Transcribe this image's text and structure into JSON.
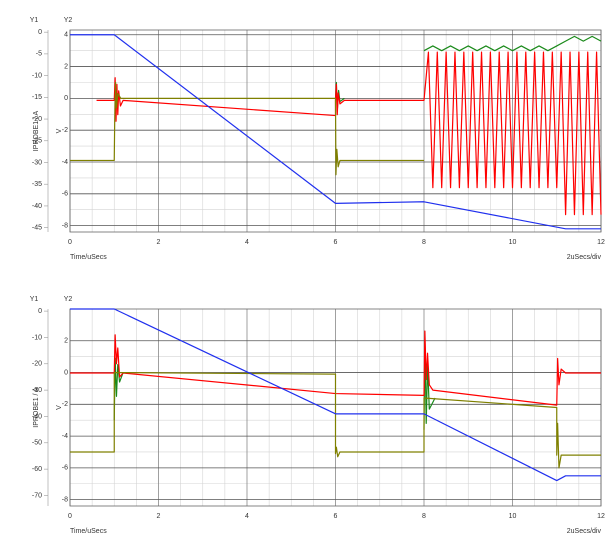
{
  "chart_data": [
    {
      "type": "line",
      "y1_title": "Y1",
      "y2_title": "Y2",
      "ylabel": "IPROBE1 / A",
      "y2label": "V",
      "x_label": "Time/uSecs",
      "x_scale_label": "2uSecs/div",
      "grid": true,
      "xlim": [
        0,
        12
      ],
      "xticks": [
        0,
        2,
        4,
        6,
        8,
        10,
        12
      ],
      "ylim": [
        -46,
        0.5
      ],
      "yticks": [
        0,
        -5,
        -10,
        -15,
        -20,
        -25,
        -30,
        -35,
        -40,
        -45
      ],
      "y2lim": [
        -8.4,
        4.3
      ],
      "y2ticks": [
        4,
        2,
        0,
        -2,
        -4,
        -6,
        -8
      ],
      "series": [
        {
          "color": "#1a8a1a",
          "axis": "y2",
          "x": [
            6,
            6.02,
            6.04,
            6.07,
            6.1,
            6.2,
            6.2,
            8,
            8.2,
            8.4,
            8.6,
            8.8,
            9,
            9.2,
            9.4,
            9.6,
            9.8,
            10,
            10.2,
            10.4,
            10.6,
            10.8,
            11,
            11.2,
            11.4,
            11.6,
            11.8,
            12
          ],
          "values": [
            0,
            1.0,
            -0.8,
            0.5,
            -0.2,
            0,
            null,
            3.0,
            3.3,
            3.0,
            3.3,
            3.0,
            3.3,
            3.0,
            3.3,
            3.0,
            3.3,
            3.0,
            3.3,
            3.0,
            3.3,
            3.0,
            3.3,
            3.6,
            3.9,
            3.6,
            3.9,
            3.6
          ]
        },
        {
          "color": "#ff0000",
          "x": [
            0.6,
            1,
            1.02,
            1.04,
            1.06,
            1.08,
            1.1,
            1.14,
            1.2,
            6,
            6,
            6.02,
            6.04,
            6.06,
            6.1,
            6.2,
            8,
            8.1,
            8.2,
            8.3,
            8.4,
            8.5,
            8.6,
            8.7,
            8.8,
            8.9,
            9,
            9.1,
            9.2,
            9.3,
            9.4,
            9.5,
            9.6,
            9.7,
            9.8,
            9.9,
            10,
            10.1,
            10.2,
            10.3,
            10.4,
            10.5,
            10.6,
            10.7,
            10.8,
            10.9,
            11,
            11.1,
            11.2,
            11.3,
            11.4,
            11.5,
            11.6,
            11.7,
            11.8,
            11.9,
            12
          ],
          "values": [
            -15.7,
            -15.7,
            -10.5,
            -20.5,
            -12,
            -19,
            -13.5,
            -17,
            -15.7,
            -19.2,
            -15.7,
            -12,
            -19,
            -14,
            -16.5,
            -15.7,
            -15.7,
            -4.6,
            -35.8,
            -4.6,
            -35.8,
            -4.6,
            -35.8,
            -4.6,
            -35.8,
            -4.6,
            -35.8,
            -4.6,
            -35.8,
            -4.6,
            -35.8,
            -4.6,
            -35.8,
            -4.6,
            -35.8,
            -4.6,
            -35.8,
            -4.6,
            -35.8,
            -4.6,
            -35.8,
            -4.6,
            -35.8,
            -4.6,
            -35.8,
            -4.6,
            -35.8,
            -4.6,
            -42,
            -4.6,
            -42,
            -4.6,
            -42,
            -4.6,
            -42,
            -4.6,
            -42
          ]
        },
        {
          "color": "#7f8000",
          "axis": "y2",
          "x": [
            0,
            1,
            1,
            1.01,
            1.03,
            1.05,
            1.08,
            1.15,
            6,
            6,
            6.01,
            6.03,
            6.06,
            6.1,
            8
          ],
          "values": [
            -3.9,
            -3.9,
            -3.9,
            -1.5,
            1,
            -0.6,
            0.3,
            0,
            0,
            0,
            -4.8,
            -3.2,
            -4.3,
            -3.9,
            -3.9
          ]
        },
        {
          "color": "#2030ee",
          "axis": "y2",
          "x": [
            0,
            1,
            6,
            8,
            11.2,
            12
          ],
          "values": [
            4,
            4,
            -6.6,
            -6.5,
            -8.2,
            -8.2
          ]
        }
      ]
    },
    {
      "type": "line",
      "y1_title": "Y1",
      "y2_title": "Y2",
      "ylabel": "IPROBE1 / A",
      "y2label": "V",
      "x_label": "Time/uSecs",
      "x_scale_label": "2uSecs/div",
      "grid": true,
      "xlim": [
        0,
        12
      ],
      "xticks": [
        0,
        2,
        4,
        6,
        8,
        10,
        12
      ],
      "ylim": [
        -74,
        0.8
      ],
      "yticks": [
        0,
        -10,
        -20,
        -30,
        -40,
        -50,
        -60,
        -70
      ],
      "y2lim": [
        -8.4,
        4.0
      ],
      "y2ticks": [
        2,
        0,
        -2,
        -4,
        -6,
        -8
      ],
      "series": [
        {
          "color": "#1a8a1a",
          "axis": "y2",
          "x": [
            1,
            1.02,
            1.05,
            1.08,
            1.12,
            1.2,
            1.2,
            8,
            8.02,
            8.05,
            8.08,
            8.12,
            8.25
          ],
          "values": [
            -3,
            0.9,
            -1.5,
            0.5,
            -0.6,
            0,
            null,
            -3.6,
            2,
            -3.2,
            0.5,
            -2.3,
            -1.6
          ]
        },
        {
          "color": "#ff0000",
          "x": [
            0,
            1,
            1.02,
            1.05,
            1.08,
            1.12,
            1.2,
            6,
            6,
            8,
            8.02,
            8.05,
            8.08,
            8.12,
            8.2,
            11,
            11,
            11.02,
            11.05,
            11.1,
            11.2,
            12
          ],
          "values": [
            -23.5,
            -23.5,
            -9,
            -20,
            -14,
            -25,
            -23.5,
            -31.3,
            -31.3,
            -32,
            -7.6,
            -26,
            -16,
            -28,
            -30,
            -35.7,
            -35.7,
            -18,
            -28,
            -22,
            -23.5,
            -23.5
          ]
        },
        {
          "color": "#7f8000",
          "axis": "y2",
          "x": [
            0,
            1,
            1,
            6,
            6,
            6.02,
            6.05,
            6.1,
            8,
            8,
            11,
            11,
            11.02,
            11.05,
            11.1,
            12
          ],
          "values": [
            -5,
            -5,
            0,
            -0.1,
            -5.1,
            -4.7,
            -5.3,
            -5,
            -5,
            -1.6,
            -2.2,
            -5.2,
            -3.2,
            -6.0,
            -5.2,
            -5.2
          ]
        },
        {
          "color": "#2030ee",
          "axis": "y2",
          "x": [
            0,
            1,
            6,
            8,
            11,
            11.2,
            12
          ],
          "values": [
            4,
            4,
            -2.6,
            -2.6,
            -6.8,
            -6.5,
            -6.5
          ]
        }
      ]
    }
  ]
}
